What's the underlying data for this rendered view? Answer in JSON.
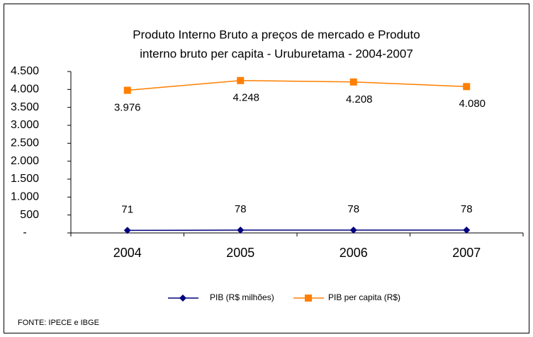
{
  "chart_data": {
    "type": "line",
    "title": [
      "Produto Interno Bruto a preços de mercado e  Produto",
      "interno bruto per capita - Uruburetama - 2004-2007"
    ],
    "categories": [
      "2004",
      "2005",
      "2006",
      "2007"
    ],
    "series": [
      {
        "name": "PIB (R$ milhões)",
        "color": "#000080",
        "marker": "diamond",
        "values": [
          71,
          78,
          78,
          78
        ]
      },
      {
        "name": "PIB per capita (R$)",
        "color": "#ff7f00",
        "marker": "square",
        "values": [
          3976,
          4248,
          4208,
          4080
        ],
        "value_labels": [
          "3.976",
          "4.248",
          "4.208",
          "4.080"
        ]
      }
    ],
    "ylim": [
      0,
      4500
    ],
    "yticks": [
      {
        "value": 0,
        "label": "-"
      },
      500,
      {
        "value": 1000,
        "label": "1.000"
      },
      {
        "value": 1500,
        "label": "1.500"
      },
      {
        "value": 2000,
        "label": "2.000"
      },
      {
        "value": 2500,
        "label": "2.500"
      },
      {
        "value": 3000,
        "label": "3.000"
      },
      {
        "value": 3500,
        "label": "3.500"
      },
      {
        "value": 4000,
        "label": "4.000"
      },
      {
        "value": 4500,
        "label": "4.500"
      }
    ],
    "grid": false,
    "legend": "bottom",
    "source": "FONTE: IPECE e IBGE"
  }
}
